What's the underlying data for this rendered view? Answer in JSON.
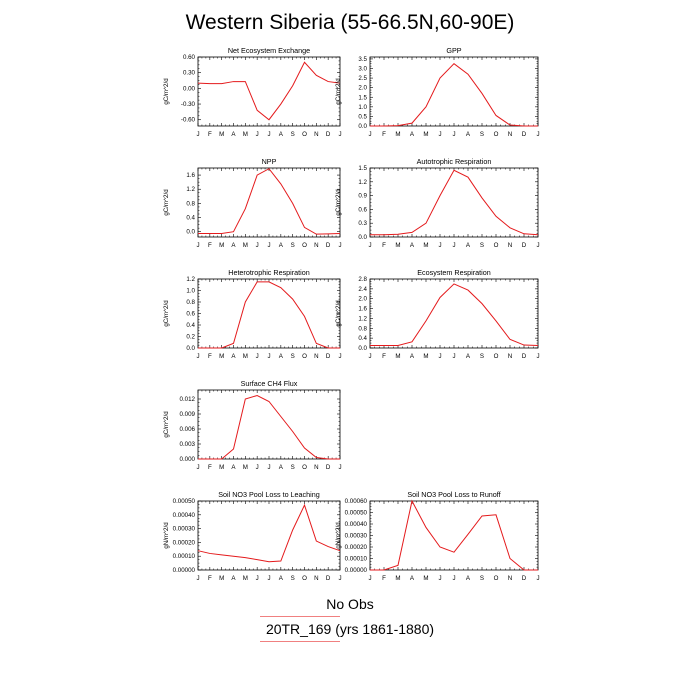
{
  "title": "Western Siberia (55-66.5N,60-90E)",
  "legend": [
    "No Obs",
    "20TR_169 (yrs 1861-1880)"
  ],
  "line_color": "#e41a1c",
  "chart_data": [
    {
      "type": "line",
      "title": "Net Ecosystem Exchange",
      "ylabel": "gC/m^2/d",
      "categories": [
        "J",
        "F",
        "M",
        "A",
        "M",
        "J",
        "J",
        "A",
        "S",
        "O",
        "N",
        "D",
        "J"
      ],
      "yticks": [
        "0.60",
        "0.30",
        "0.00",
        "-0.30",
        "-0.60"
      ],
      "ylim": [
        -0.72,
        0.6
      ],
      "values": [
        0.1,
        0.09,
        0.09,
        0.13,
        0.13,
        -0.42,
        -0.6,
        -0.3,
        0.05,
        0.5,
        0.25,
        0.13,
        0.1
      ]
    },
    {
      "type": "line",
      "title": "GPP",
      "ylabel": "gC/m^2/d",
      "categories": [
        "J",
        "F",
        "M",
        "A",
        "M",
        "J",
        "J",
        "A",
        "S",
        "O",
        "N",
        "D",
        "J"
      ],
      "yticks": [
        "3.5",
        "3.0",
        "2.5",
        "2.0",
        "1.5",
        "1.0",
        "0.5",
        "0.0"
      ],
      "ylim": [
        0,
        3.6
      ],
      "values": [
        0.0,
        0.0,
        0.02,
        0.15,
        1.0,
        2.5,
        3.25,
        2.7,
        1.7,
        0.55,
        0.05,
        0.0,
        0.0
      ]
    },
    {
      "type": "line",
      "title": "NPP",
      "ylabel": "gC/m^2/d",
      "categories": [
        "J",
        "F",
        "M",
        "A",
        "M",
        "J",
        "J",
        "A",
        "S",
        "O",
        "N",
        "D",
        "J"
      ],
      "yticks": [
        "1.6",
        "1.2",
        "0.8",
        "0.4",
        "0.0"
      ],
      "ylim": [
        -0.15,
        1.8
      ],
      "values": [
        -0.05,
        -0.05,
        -0.05,
        0.0,
        0.65,
        1.6,
        1.78,
        1.35,
        0.8,
        0.12,
        -0.07,
        -0.06,
        -0.05
      ]
    },
    {
      "type": "line",
      "title": "Autotrophic Respiration",
      "ylabel": "gC/m^2/d",
      "categories": [
        "J",
        "F",
        "M",
        "A",
        "M",
        "J",
        "J",
        "A",
        "S",
        "O",
        "N",
        "D",
        "J"
      ],
      "yticks": [
        "1.5",
        "1.2",
        "0.9",
        "0.6",
        "0.3",
        "0.0"
      ],
      "ylim": [
        0,
        1.5
      ],
      "values": [
        0.05,
        0.05,
        0.06,
        0.1,
        0.3,
        0.9,
        1.45,
        1.3,
        0.85,
        0.45,
        0.2,
        0.07,
        0.05
      ]
    },
    {
      "type": "line",
      "title": "Heterotrophic Respiration",
      "ylabel": "gC/m^2/d",
      "categories": [
        "J",
        "F",
        "M",
        "A",
        "M",
        "J",
        "J",
        "A",
        "S",
        "O",
        "N",
        "D",
        "J"
      ],
      "yticks": [
        "1.2",
        "1.0",
        "0.8",
        "0.6",
        "0.4",
        "0.2",
        "0.0"
      ],
      "ylim": [
        0,
        1.2
      ],
      "values": [
        0.0,
        0.0,
        0.0,
        0.08,
        0.8,
        1.15,
        1.15,
        1.05,
        0.85,
        0.55,
        0.08,
        0.0,
        0.0
      ]
    },
    {
      "type": "line",
      "title": "Ecosystem Respiration",
      "ylabel": "gC/m^2/d",
      "categories": [
        "J",
        "F",
        "M",
        "A",
        "M",
        "J",
        "J",
        "A",
        "S",
        "O",
        "N",
        "D",
        "J"
      ],
      "yticks": [
        "2.8",
        "2.4",
        "2.0",
        "1.6",
        "1.2",
        "0.8",
        "0.4",
        "0.0"
      ],
      "ylim": [
        0,
        2.8
      ],
      "values": [
        0.1,
        0.1,
        0.1,
        0.25,
        1.1,
        2.05,
        2.6,
        2.35,
        1.8,
        1.1,
        0.35,
        0.12,
        0.1
      ]
    },
    {
      "type": "line",
      "title": "Surface CH4 Flux",
      "ylabel": "gC/m^2/d",
      "categories": [
        "J",
        "F",
        "M",
        "A",
        "M",
        "J",
        "J",
        "A",
        "S",
        "O",
        "N",
        "D",
        "J"
      ],
      "yticks": [
        "0.012",
        "0.009",
        "0.006",
        "0.003",
        "0.000"
      ],
      "ylim": [
        0,
        0.0138
      ],
      "values": [
        0.0,
        0.0,
        0.0,
        0.002,
        0.012,
        0.0127,
        0.0115,
        0.0085,
        0.0055,
        0.0022,
        0.0003,
        0.0,
        0.0
      ]
    },
    {
      "type": "line",
      "title": "Soil NO3 Pool Loss to Leaching",
      "ylabel": "gN/m^2/d",
      "categories": [
        "J",
        "F",
        "M",
        "A",
        "M",
        "J",
        "J",
        "A",
        "S",
        "O",
        "N",
        "D",
        "J"
      ],
      "yticks": [
        "0.00050",
        "0.00040",
        "0.00030",
        "0.00020",
        "0.00010",
        "0.00000"
      ],
      "ylim": [
        0,
        0.0005
      ],
      "values": [
        0.00014,
        0.00012,
        0.00011,
        0.0001,
        9e-05,
        7.5e-05,
        6e-05,
        6.5e-05,
        0.00029,
        0.00047,
        0.00021,
        0.00017,
        0.00014
      ]
    },
    {
      "type": "line",
      "title": "Soil NO3 Pool Loss to Runoff",
      "ylabel": "gN/m^2/d",
      "categories": [
        "J",
        "F",
        "M",
        "A",
        "M",
        "J",
        "J",
        "A",
        "S",
        "O",
        "N",
        "D",
        "J"
      ],
      "yticks": [
        "0.00060",
        "0.00050",
        "0.00040",
        "0.00030",
        "0.00020",
        "0.00010",
        "0.00000"
      ],
      "ylim": [
        0,
        0.0006
      ],
      "values": [
        0.0,
        0.0,
        4e-05,
        0.0006,
        0.00037,
        0.0002,
        0.000155,
        0.00031,
        0.00047,
        0.00048,
        0.0001,
        0.0,
        0.0
      ]
    }
  ]
}
